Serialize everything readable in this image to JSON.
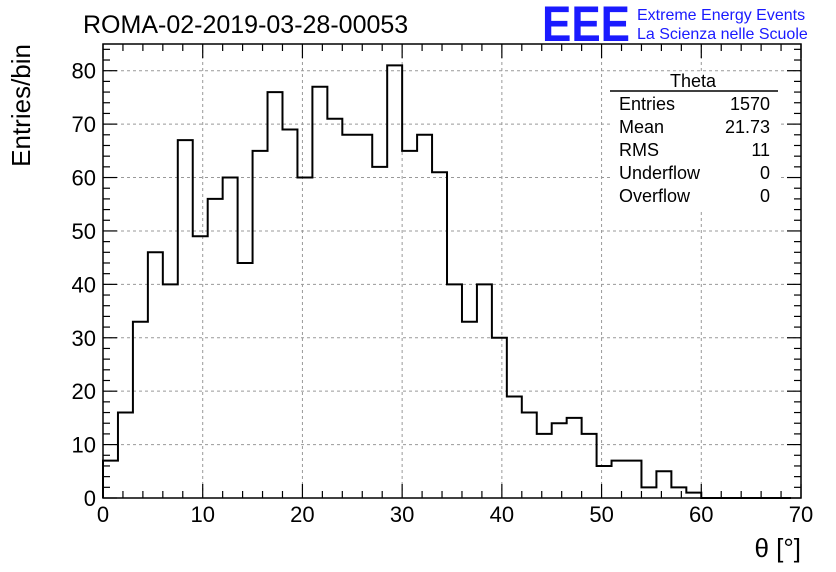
{
  "header": {
    "run_title": "ROMA-02-2019-03-28-00053",
    "logo_mark": "EEE",
    "logo_line1": "Extreme Energy Events",
    "logo_line2": "La Scienza nelle Scuole",
    "logo_color": "#1a1aff"
  },
  "stats_box": {
    "name": "Theta",
    "rows": [
      {
        "label": "Entries",
        "value": "1570"
      },
      {
        "label": "Mean",
        "value": "21.73"
      },
      {
        "label": "RMS",
        "value": "11"
      },
      {
        "label": "Underflow",
        "value": "0"
      },
      {
        "label": "Overflow",
        "value": "0"
      }
    ]
  },
  "chart_data": {
    "type": "bar",
    "style": "step-histogram",
    "bin_width": 1.5,
    "x_start": 0,
    "values": [
      7,
      16,
      33,
      46,
      40,
      67,
      49,
      56,
      60,
      44,
      65,
      76,
      69,
      60,
      77,
      71,
      68,
      68,
      62,
      81,
      65,
      68,
      61,
      40,
      33,
      40,
      30,
      19,
      16,
      12,
      14,
      15,
      12,
      6,
      7,
      7,
      2,
      5,
      2,
      1,
      0,
      0,
      0,
      0,
      0,
      0
    ],
    "xlabel": "θ [°]",
    "ylabel": "Entries/bin",
    "xlim": [
      0,
      70
    ],
    "ylim": [
      0,
      85
    ],
    "x_ticks": [
      0,
      10,
      20,
      30,
      40,
      50,
      60,
      70
    ],
    "y_ticks": [
      0,
      10,
      20,
      30,
      40,
      50,
      60,
      70,
      80
    ],
    "grid": true,
    "line_color": "#000000"
  }
}
